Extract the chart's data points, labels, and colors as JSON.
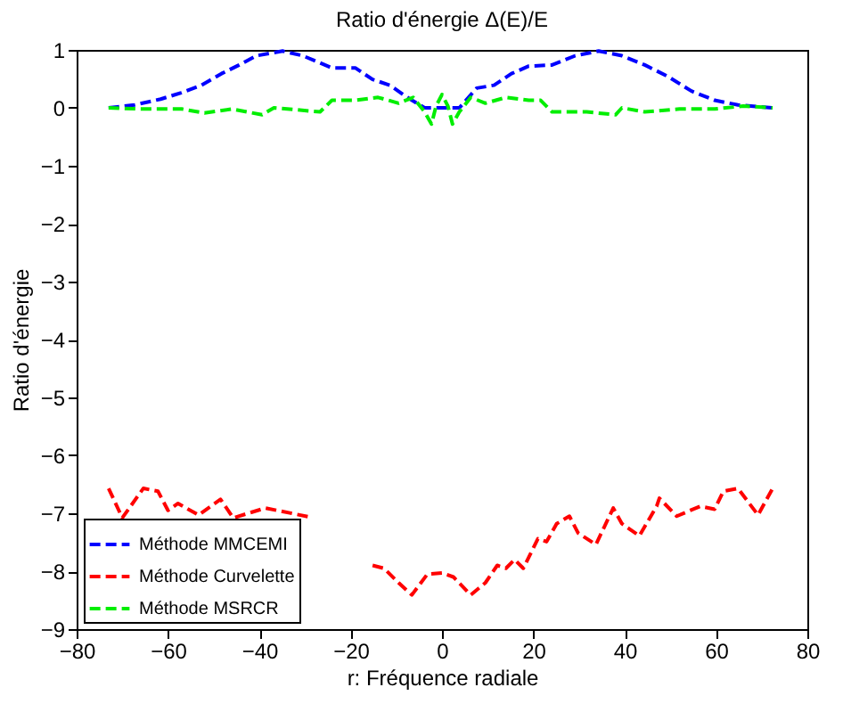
{
  "chart_data": {
    "type": "line",
    "title": "Ratio d'énergie Δ(E)/E",
    "xlabel": "r: Fréquence radiale",
    "ylabel": "Ratio d'énergie",
    "xlim": [
      -80,
      80
    ],
    "xticks": [
      -80,
      -60,
      -40,
      -20,
      0,
      20,
      40,
      60,
      80
    ],
    "ylim": [
      -9,
      1
    ],
    "yticks": [
      -9,
      -8,
      -7,
      -6,
      -5,
      -4,
      -3,
      -2,
      -1,
      0,
      1
    ],
    "grid": false,
    "legend": "bottom left",
    "line_style": "dashed",
    "marker": "none",
    "series": [
      {
        "name": "Méthode MMCEMI",
        "color": "#0000ff",
        "x": [
          -73,
          -67.3,
          -61.6,
          -57.1,
          -52.7,
          -48.3,
          -44.4,
          -40.6,
          -34.9,
          -30.5,
          -24.1,
          -19,
          -15.2,
          -11.4,
          -7.6,
          -3.8,
          0,
          3.8,
          7.6,
          11.4,
          15.2,
          19,
          24.1,
          29.2,
          34.3,
          39.4,
          44.4,
          49.5,
          54.6,
          59.7,
          64.8,
          72.4
        ],
        "values": [
          0,
          0.05,
          0.15,
          0.26,
          0.39,
          0.59,
          0.74,
          0.9,
          0.98,
          0.9,
          0.69,
          0.69,
          0.49,
          0.39,
          0.18,
          0,
          0,
          0,
          0.34,
          0.39,
          0.59,
          0.72,
          0.74,
          0.9,
          0.98,
          0.9,
          0.74,
          0.54,
          0.29,
          0.13,
          0.05,
          0
        ]
      },
      {
        "name": "Méthode Curvelette",
        "color": "#ff0000",
        "x": [
          -73,
          -70,
          -65.4,
          -62.2,
          -60,
          -57.8,
          -53.3,
          -48.5,
          -45.7,
          -38.7,
          -29.2,
          -22,
          -15.2,
          -12.7,
          -9.5,
          -6.6,
          -3.2,
          0,
          2.5,
          6.3,
          9.5,
          12.1,
          14,
          15.9,
          17.8,
          21,
          22.9,
          25.1,
          27.9,
          29.8,
          33.7,
          37.5,
          39.4,
          43.2,
          47,
          47.6,
          51.4,
          56.5,
          59.7,
          61.6,
          64.8,
          69.2,
          72.4
        ],
        "values": [
          -6.57,
          -7.08,
          -6.57,
          -6.62,
          -6.95,
          -6.83,
          -7.03,
          -6.76,
          -7.08,
          -6.91,
          -7.06,
          null,
          -7.9,
          -7.95,
          -8.2,
          -8.41,
          -8.05,
          -8.03,
          -8.1,
          -8.41,
          -8.2,
          -7.9,
          -7.95,
          -7.8,
          -7.95,
          -7.44,
          -7.49,
          -7.18,
          -7.05,
          -7.34,
          -7.54,
          -6.91,
          -7.18,
          -7.39,
          -6.88,
          -6.74,
          -7.05,
          -6.88,
          -6.93,
          -6.62,
          -6.57,
          -7.03,
          -6.57
        ]
      },
      {
        "name": "Méthode MSRCR",
        "color": "#00ee00",
        "x": [
          -73,
          -66,
          -57,
          -52,
          -46,
          -39.4,
          -36.8,
          -26.7,
          -24.1,
          -19,
          -14,
          -9.5,
          -6.3,
          -3.8,
          -2.3,
          -1.3,
          0,
          1.3,
          2.3,
          3.8,
          6.3,
          9.5,
          14,
          19,
          21.6,
          24.1,
          31.7,
          38,
          39.4,
          44.4,
          52,
          59.7,
          66,
          72.4
        ],
        "values": [
          0,
          -0.02,
          -0.02,
          -0.09,
          -0.02,
          -0.12,
          0,
          -0.07,
          0.13,
          0.13,
          0.18,
          0.08,
          0.18,
          -0.07,
          -0.28,
          0.03,
          0.23,
          0.03,
          -0.28,
          -0.07,
          0.18,
          0.08,
          0.18,
          0.13,
          0.13,
          -0.07,
          -0.07,
          -0.12,
          0,
          -0.07,
          -0.02,
          -0.02,
          0.03,
          0
        ]
      }
    ]
  }
}
